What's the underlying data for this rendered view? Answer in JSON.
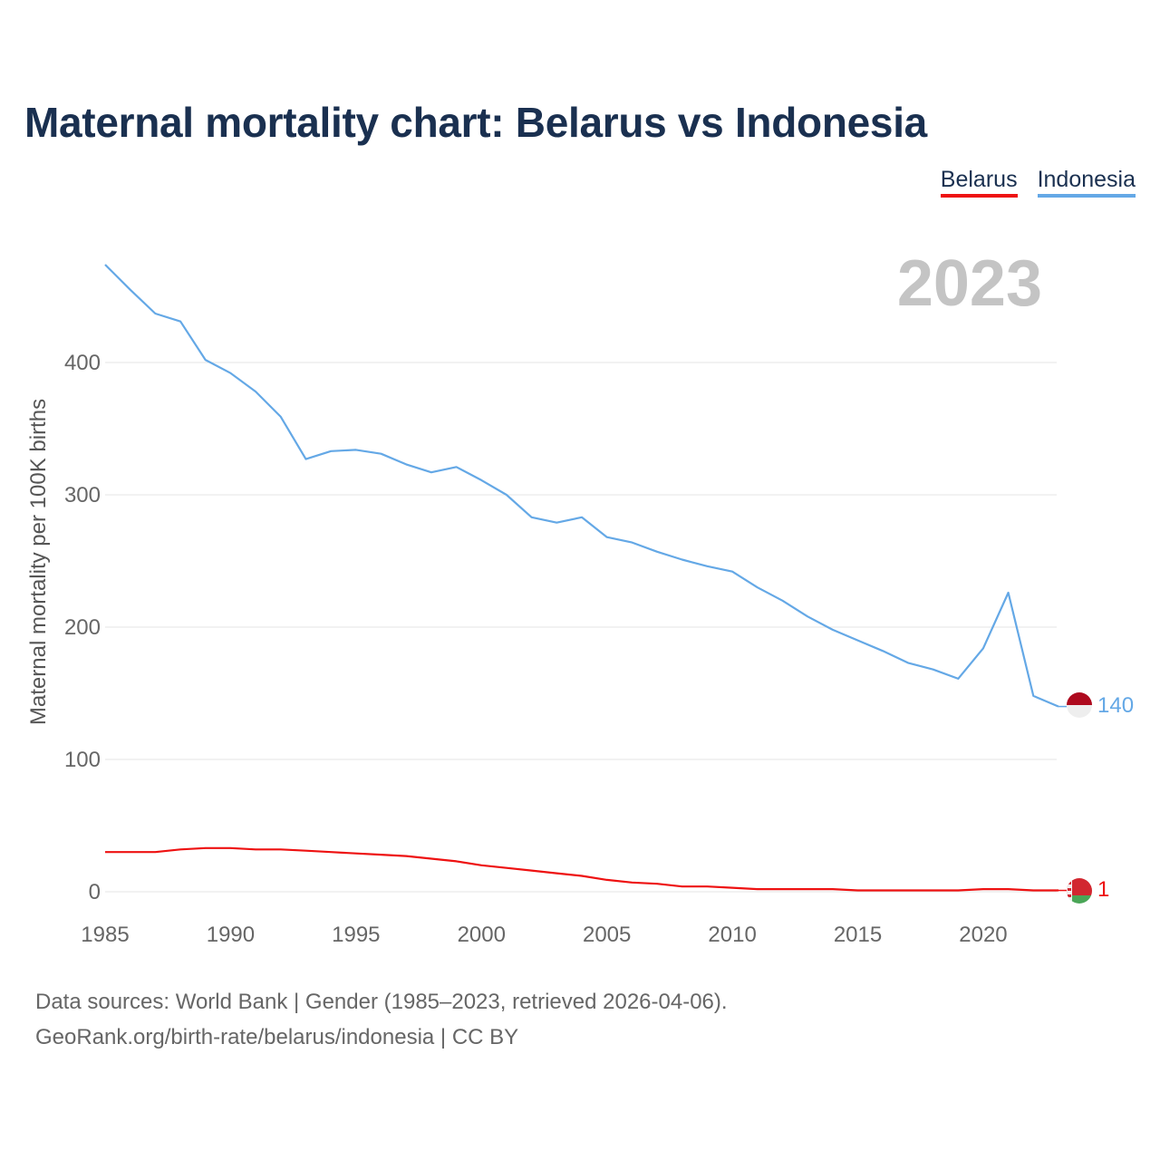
{
  "chart_data": {
    "type": "line",
    "title": "Maternal mortality chart: Belarus vs Indonesia",
    "ylabel": "Maternal mortality per 100K births",
    "xlabel": "",
    "current_year": "2023",
    "x": [
      1985,
      1986,
      1987,
      1988,
      1989,
      1990,
      1991,
      1992,
      1993,
      1994,
      1995,
      1996,
      1997,
      1998,
      1999,
      2000,
      2001,
      2002,
      2003,
      2004,
      2005,
      2006,
      2007,
      2008,
      2009,
      2010,
      2011,
      2012,
      2013,
      2014,
      2015,
      2016,
      2017,
      2018,
      2019,
      2020,
      2021,
      2022,
      2023
    ],
    "xlim": [
      1985,
      2023
    ],
    "ylim": [
      0,
      480
    ],
    "xticks": [
      1985,
      1990,
      1995,
      2000,
      2005,
      2010,
      2015,
      2020
    ],
    "yticks": [
      0,
      100,
      200,
      300,
      400
    ],
    "grid": true,
    "legend_position": "top-right",
    "series": [
      {
        "name": "Belarus",
        "color": "#ee1111",
        "end_label": "1",
        "values": [
          30,
          30,
          30,
          32,
          33,
          33,
          32,
          32,
          31,
          30,
          29,
          28,
          27,
          25,
          23,
          20,
          18,
          16,
          14,
          12,
          9,
          7,
          6,
          4,
          4,
          3,
          2,
          2,
          2,
          2,
          1,
          1,
          1,
          1,
          1,
          2,
          2,
          1,
          1
        ]
      },
      {
        "name": "Indonesia",
        "color": "#64a8e6",
        "end_label": "140",
        "values": [
          474,
          455,
          437,
          431,
          402,
          392,
          378,
          359,
          327,
          333,
          334,
          331,
          323,
          317,
          321,
          311,
          300,
          283,
          279,
          283,
          268,
          264,
          257,
          251,
          246,
          242,
          230,
          220,
          208,
          198,
          190,
          182,
          173,
          168,
          161,
          184,
          226,
          148,
          140
        ]
      }
    ]
  },
  "source": {
    "line1": "Data sources: World Bank | Gender (1985–2023, retrieved 2026-04-06).",
    "line2": "GeoRank.org/birth-rate/belarus/indonesia | CC BY"
  }
}
